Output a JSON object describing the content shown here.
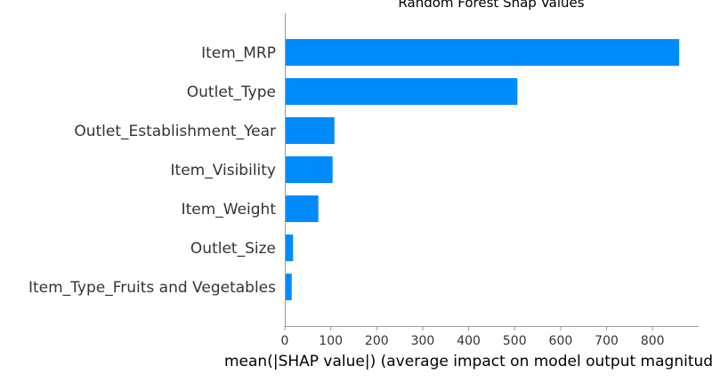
{
  "chart_data": {
    "type": "bar",
    "orientation": "horizontal",
    "title": "Random Forest Shap Values",
    "xlabel": "mean(|SHAP value|) (average impact on model output magnitude)",
    "ylabel": "",
    "categories": [
      "Item_MRP",
      "Outlet_Type",
      "Outlet_Establishment_Year",
      "Item_Visibility",
      "Item_Weight",
      "Outlet_Size",
      "Item_Type_Fruits and Vegetables"
    ],
    "values": [
      858,
      506,
      108,
      104,
      73,
      18,
      15
    ],
    "xlim": [
      0,
      900
    ],
    "xticks": [
      0,
      100,
      200,
      300,
      400,
      500,
      600,
      700,
      800
    ],
    "grid": false,
    "bar_color": "#008bfb"
  }
}
